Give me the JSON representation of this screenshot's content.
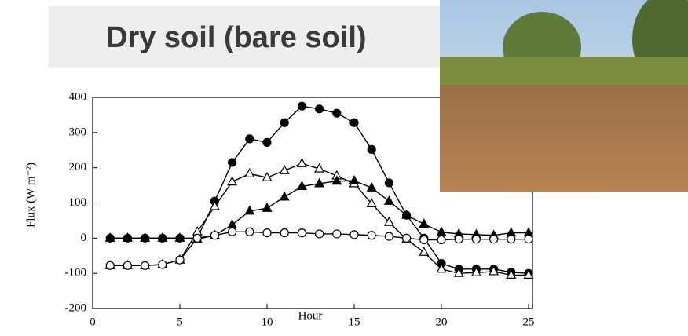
{
  "chart_data": {
    "type": "line",
    "title": "Dry soil (bare soil)",
    "x_label": "Hour",
    "y_label": "Flux (W m⁻²)",
    "x": [
      1,
      2,
      3,
      4,
      5,
      6,
      7,
      8,
      9,
      10,
      11,
      12,
      13,
      14,
      15,
      16,
      17,
      18,
      19,
      20,
      21,
      22,
      23,
      24,
      25
    ],
    "series": [
      {
        "color": "#000000",
        "marker": "circle",
        "filled": true,
        "values": [
          0,
          0,
          0,
          0,
          0,
          0,
          105,
          215,
          282,
          272,
          328,
          375,
          367,
          355,
          328,
          252,
          157,
          65,
          0,
          -72,
          -88,
          -88,
          -88,
          -97,
          -100
        ]
      },
      {
        "color": "#000000",
        "marker": "triangle",
        "filled": false,
        "values": [
          -78,
          -78,
          -78,
          -75,
          -62,
          18,
          90,
          160,
          183,
          172,
          192,
          212,
          197,
          177,
          155,
          98,
          45,
          -3,
          -40,
          -88,
          -100,
          -98,
          -95,
          -105,
          -105
        ]
      },
      {
        "color": "#000000",
        "marker": "triangle",
        "filled": true,
        "values": [
          0,
          0,
          0,
          0,
          0,
          -3,
          8,
          38,
          77,
          85,
          117,
          147,
          155,
          162,
          163,
          143,
          105,
          65,
          40,
          17,
          12,
          10,
          8,
          15,
          15
        ]
      },
      {
        "color": "#000000",
        "marker": "circle",
        "filled": false,
        "values": [
          -78,
          -78,
          -78,
          -75,
          -62,
          0,
          8,
          18,
          18,
          15,
          15,
          15,
          12,
          12,
          10,
          8,
          5,
          0,
          -5,
          -5,
          -3,
          -3,
          -3,
          -3,
          -3
        ]
      }
    ],
    "xlim": [
      0,
      25
    ],
    "xticks": [
      0,
      5,
      10,
      15,
      20,
      25
    ],
    "ylim": [
      -200,
      400
    ],
    "yticks": [
      -200,
      -100,
      0,
      100,
      200,
      300,
      400
    ],
    "grid": false
  }
}
